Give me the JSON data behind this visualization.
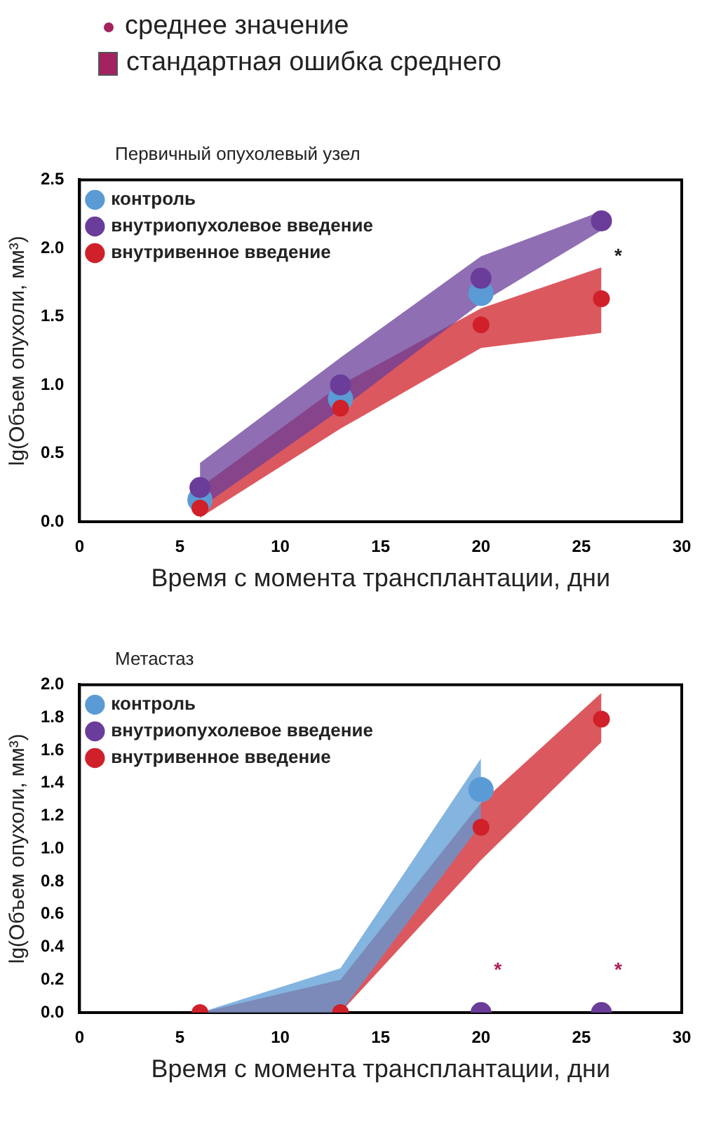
{
  "chart_data": [
    {
      "type": "scatter",
      "title": "Первичный опухолевый узел",
      "xlabel": "Время с момента трансплантации, дни",
      "ylabel": "lg(Объем опухоли, мм³)",
      "x": [
        6,
        13,
        20,
        26
      ],
      "xlim": [
        0,
        30
      ],
      "xticks": [
        0,
        5,
        10,
        15,
        20,
        25,
        30
      ],
      "ylim": [
        0,
        2.5
      ],
      "yticks": [
        {
          "value": 0,
          "label": "0.0"
        },
        0.5,
        {
          "value": 1,
          "label": "1.0"
        },
        1.5,
        {
          "value": 2,
          "label": "2.0"
        },
        2.5
      ],
      "grid": false,
      "legend": "top left",
      "marker": "circle",
      "series": [
        {
          "name": "контроль",
          "color": "#5b9bd5",
          "values": [
            0.16,
            0.9,
            1.67,
            null
          ]
        },
        {
          "name": "внутриопухолевое введение",
          "color": "#6a3d9a",
          "values": [
            0.25,
            1.0,
            1.78,
            2.2
          ],
          "lower": [
            0.1,
            0.82,
            1.6,
            2.13
          ],
          "upper": [
            0.43,
            1.2,
            1.94,
            2.27
          ]
        },
        {
          "name": "внутривенное введение",
          "color": "#d0202a",
          "values": [
            0.1,
            0.83,
            1.44,
            1.63
          ],
          "value_labels": [
            null,
            null,
            null,
            "*"
          ],
          "lower": [
            0.03,
            0.68,
            1.27,
            1.38
          ],
          "upper": [
            0.25,
            1.0,
            1.56,
            1.86
          ]
        }
      ],
      "annotations": [
        "среднее значение",
        "стандартная ошибка среднего"
      ]
    },
    {
      "type": "scatter",
      "title": "Метастаз",
      "xlabel": "Время с момента трансплантации, дни",
      "ylabel": "lg(Объем опухоли, мм³)",
      "x": [
        6,
        13,
        20,
        26
      ],
      "xlim": [
        0,
        30
      ],
      "xticks": [
        0,
        5,
        10,
        15,
        20,
        25,
        30
      ],
      "ylim": [
        0,
        2.0
      ],
      "yticks": [
        {
          "value": 0,
          "label": "0.0"
        },
        0.2,
        0.4,
        0.6,
        0.8,
        {
          "value": 1,
          "label": "1.0"
        },
        1.2,
        1.4,
        1.6,
        1.8,
        {
          "value": 2,
          "label": "2.0"
        }
      ],
      "grid": false,
      "legend": "top left",
      "marker": "circle",
      "series": [
        {
          "name": "контроль",
          "color": "#5b9bd5",
          "values": [
            null,
            null,
            1.36,
            null
          ],
          "lower": [
            0,
            0,
            1.15,
            null
          ],
          "upper": [
            0,
            0.27,
            1.55,
            null
          ]
        },
        {
          "name": "внутриопухолевое введение",
          "color": "#6a3d9a",
          "values": [
            null,
            null,
            0,
            0
          ],
          "value_labels": [
            null,
            null,
            "*",
            "*"
          ]
        },
        {
          "name": "внутривенное введение",
          "color": "#d0202a",
          "values": [
            0,
            0,
            1.13,
            1.79
          ],
          "lower": [
            0,
            0,
            0.93,
            1.65
          ],
          "upper": [
            0,
            0.2,
            1.28,
            1.95
          ]
        }
      ]
    }
  ]
}
